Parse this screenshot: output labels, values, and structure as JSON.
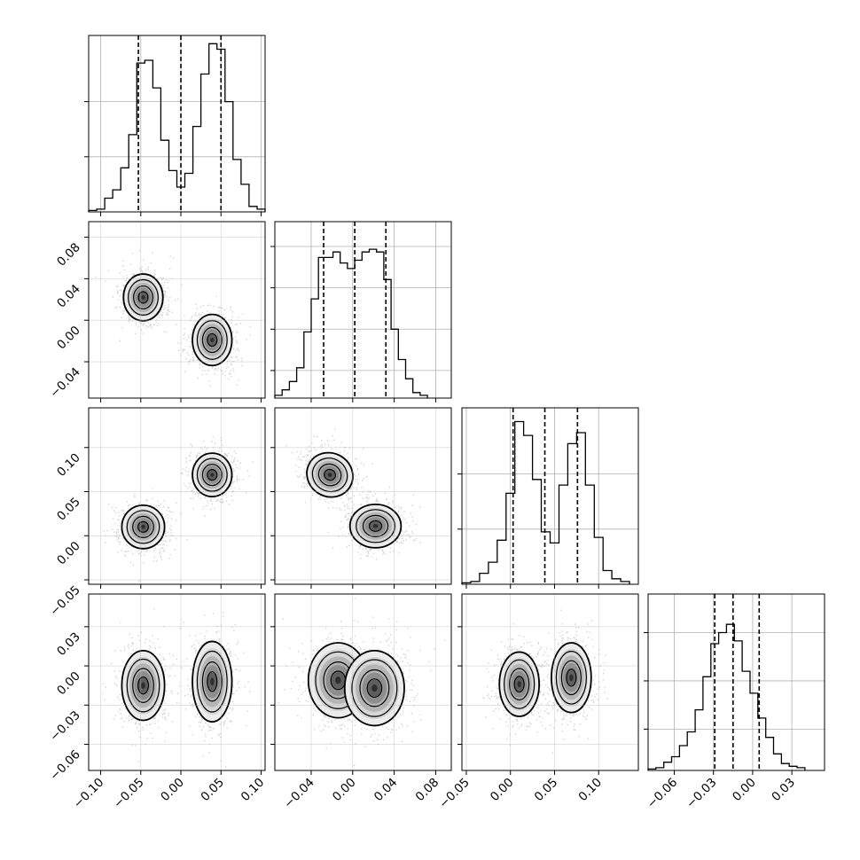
{
  "chart_data": {
    "type": "corner",
    "grid": true,
    "axis_ranges": [
      [
        -0.115,
        0.105
      ],
      [
        -0.075,
        0.095
      ],
      [
        -0.055,
        0.145
      ],
      [
        -0.08,
        0.055
      ]
    ],
    "ticks": [
      [
        "−0.10",
        "−0.05",
        "0.00",
        "0.05",
        "0.10"
      ],
      [
        "−0.04",
        "0.00",
        "0.04",
        "0.08"
      ],
      [
        "−0.05",
        "0.00",
        "0.05",
        "0.10"
      ],
      [
        "−0.06",
        "−0.03",
        "0.00",
        "0.03"
      ]
    ],
    "histograms": [
      {
        "quantile_lines": [
          -0.053,
          0.0,
          0.05
        ],
        "bins": [
          [
            -0.115,
            -0.105,
            0.01
          ],
          [
            -0.105,
            -0.095,
            0.02
          ],
          [
            -0.095,
            -0.085,
            0.1
          ],
          [
            -0.085,
            -0.075,
            0.16
          ],
          [
            -0.075,
            -0.065,
            0.32
          ],
          [
            -0.065,
            -0.055,
            0.56
          ],
          [
            -0.055,
            -0.045,
            1.08
          ],
          [
            -0.045,
            -0.035,
            1.1
          ],
          [
            -0.035,
            -0.025,
            0.9
          ],
          [
            -0.025,
            -0.015,
            0.52
          ],
          [
            -0.015,
            -0.005,
            0.3
          ],
          [
            -0.005,
            0.005,
            0.18
          ],
          [
            0.005,
            0.015,
            0.28
          ],
          [
            0.015,
            0.025,
            0.62
          ],
          [
            0.025,
            0.035,
            1.0
          ],
          [
            0.035,
            0.045,
            1.22
          ],
          [
            0.045,
            0.055,
            1.18
          ],
          [
            0.055,
            0.065,
            0.8
          ],
          [
            0.065,
            0.075,
            0.38
          ],
          [
            0.075,
            0.085,
            0.2
          ],
          [
            0.085,
            0.095,
            0.04
          ],
          [
            0.095,
            0.105,
            0.02
          ]
        ]
      },
      {
        "quantile_lines": [
          -0.028,
          0.002,
          0.032
        ],
        "bins": [
          [
            -0.075,
            -0.068,
            0.02
          ],
          [
            -0.068,
            -0.061,
            0.06
          ],
          [
            -0.061,
            -0.054,
            0.12
          ],
          [
            -0.054,
            -0.047,
            0.22
          ],
          [
            -0.047,
            -0.04,
            0.48
          ],
          [
            -0.04,
            -0.033,
            0.72
          ],
          [
            -0.033,
            -0.026,
            1.02
          ],
          [
            -0.026,
            -0.019,
            1.02
          ],
          [
            -0.019,
            -0.012,
            1.06
          ],
          [
            -0.012,
            -0.005,
            0.98
          ],
          [
            -0.005,
            0.002,
            0.94
          ],
          [
            0.002,
            0.009,
            1.0
          ],
          [
            0.009,
            0.016,
            1.06
          ],
          [
            0.016,
            0.023,
            1.08
          ],
          [
            0.023,
            0.03,
            1.06
          ],
          [
            0.03,
            0.037,
            0.86
          ],
          [
            0.037,
            0.044,
            0.5
          ],
          [
            0.044,
            0.051,
            0.28
          ],
          [
            0.051,
            0.058,
            0.14
          ],
          [
            0.058,
            0.065,
            0.04
          ],
          [
            0.065,
            0.072,
            0.02
          ]
        ]
      },
      {
        "quantile_lines": [
          0.003,
          0.039,
          0.076
        ],
        "bins": [
          [
            -0.055,
            -0.045,
            0.01
          ],
          [
            -0.045,
            -0.035,
            0.02
          ],
          [
            -0.035,
            -0.025,
            0.08
          ],
          [
            -0.025,
            -0.015,
            0.16
          ],
          [
            -0.015,
            -0.005,
            0.32
          ],
          [
            -0.005,
            0.005,
            0.66
          ],
          [
            0.005,
            0.015,
            1.18
          ],
          [
            0.015,
            0.025,
            1.08
          ],
          [
            0.025,
            0.035,
            0.76
          ],
          [
            0.035,
            0.045,
            0.38
          ],
          [
            0.045,
            0.055,
            0.3
          ],
          [
            0.055,
            0.065,
            0.72
          ],
          [
            0.065,
            0.075,
            1.02
          ],
          [
            0.075,
            0.085,
            1.1
          ],
          [
            0.085,
            0.095,
            0.72
          ],
          [
            0.095,
            0.105,
            0.34
          ],
          [
            0.105,
            0.115,
            0.1
          ],
          [
            0.115,
            0.125,
            0.04
          ],
          [
            0.125,
            0.135,
            0.02
          ]
        ]
      },
      {
        "quantile_lines": [
          -0.029,
          -0.015,
          0.005
        ],
        "bins": [
          [
            -0.08,
            -0.074,
            0.01
          ],
          [
            -0.074,
            -0.068,
            0.02
          ],
          [
            -0.068,
            -0.062,
            0.06
          ],
          [
            -0.062,
            -0.056,
            0.1
          ],
          [
            -0.056,
            -0.05,
            0.18
          ],
          [
            -0.05,
            -0.044,
            0.28
          ],
          [
            -0.044,
            -0.038,
            0.44
          ],
          [
            -0.038,
            -0.032,
            0.68
          ],
          [
            -0.032,
            -0.026,
            0.92
          ],
          [
            -0.026,
            -0.02,
            1.0
          ],
          [
            -0.02,
            -0.014,
            1.06
          ],
          [
            -0.014,
            -0.008,
            0.94
          ],
          [
            -0.008,
            -0.002,
            0.72
          ],
          [
            -0.002,
            0.004,
            0.56
          ],
          [
            0.004,
            0.01,
            0.38
          ],
          [
            0.01,
            0.016,
            0.24
          ],
          [
            0.016,
            0.022,
            0.12
          ],
          [
            0.022,
            0.028,
            0.05
          ],
          [
            0.028,
            0.034,
            0.03
          ],
          [
            0.034,
            0.04,
            0.02
          ]
        ]
      }
    ],
    "hist_yticks": [
      [
        0.4,
        0.8
      ],
      [
        0.2,
        0.5,
        0.8,
        1.1
      ],
      [
        0.4,
        0.8
      ],
      [
        0.3,
        0.65,
        1.0
      ]
    ],
    "scatter_panels": [
      {
        "row": 1,
        "col": 0,
        "clusters": [
          {
            "mx": -0.047,
            "my": 0.022,
            "sx": 0.012,
            "sy": 0.011,
            "rho": 0.0
          },
          {
            "mx": 0.039,
            "my": -0.019,
            "sx": 0.012,
            "sy": 0.012,
            "rho": 0.0
          }
        ]
      },
      {
        "row": 2,
        "col": 0,
        "clusters": [
          {
            "mx": -0.047,
            "my": 0.01,
            "sx": 0.013,
            "sy": 0.012,
            "rho": 0.0
          },
          {
            "mx": 0.039,
            "my": 0.069,
            "sx": 0.012,
            "sy": 0.012,
            "rho": 0.0
          }
        ]
      },
      {
        "row": 2,
        "col": 1,
        "clusters": [
          {
            "mx": -0.022,
            "my": 0.069,
            "sx": 0.011,
            "sy": 0.012,
            "rho": -0.3
          },
          {
            "mx": 0.022,
            "my": 0.011,
            "sx": 0.012,
            "sy": 0.012,
            "rho": 0.0
          }
        ]
      },
      {
        "row": 3,
        "col": 0,
        "clusters": [
          {
            "mx": -0.047,
            "my": -0.015,
            "sx": 0.013,
            "sy": 0.013,
            "rho": 0.0
          },
          {
            "mx": 0.039,
            "my": -0.012,
            "sx": 0.012,
            "sy": 0.015,
            "rho": 0.0
          }
        ]
      },
      {
        "row": 3,
        "col": 1,
        "clusters": [
          {
            "mx": -0.014,
            "my": -0.011,
            "sx": 0.014,
            "sy": 0.014,
            "rho": 0.0
          },
          {
            "mx": 0.021,
            "my": -0.017,
            "sx": 0.014,
            "sy": 0.014,
            "rho": 0.0
          }
        ]
      },
      {
        "row": 3,
        "col": 2,
        "clusters": [
          {
            "mx": 0.01,
            "my": -0.014,
            "sx": 0.011,
            "sy": 0.012,
            "rho": 0.0
          },
          {
            "mx": 0.069,
            "my": -0.009,
            "sx": 0.011,
            "sy": 0.013,
            "rho": 0.0
          }
        ]
      }
    ]
  }
}
